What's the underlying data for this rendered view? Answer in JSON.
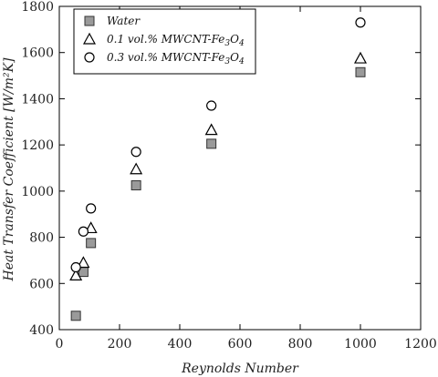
{
  "chart_data": {
    "type": "scatter",
    "xlabel": "Reynolds Number",
    "ylabel": "Heat Transfer Coefficient [W/m²K]",
    "xlim": [
      0,
      1200
    ],
    "ylim": [
      400,
      1800
    ],
    "xticks": [
      0,
      200,
      400,
      600,
      800,
      1000,
      1200
    ],
    "yticks": [
      400,
      600,
      800,
      1000,
      1200,
      1400,
      1600,
      1800
    ],
    "grid": false,
    "legend_position": "top-left",
    "series": [
      {
        "name": "Water",
        "marker": "square",
        "color": "#9a9a9a",
        "x": [
          55,
          80,
          105,
          255,
          505,
          1000
        ],
        "y": [
          460,
          650,
          775,
          1025,
          1205,
          1515
        ]
      },
      {
        "name": "0.1 vol.% MWCNT-Fe3O4",
        "marker": "triangle",
        "color": "#000000",
        "x": [
          55,
          80,
          105,
          255,
          505,
          1000
        ],
        "y": [
          635,
          690,
          840,
          1095,
          1265,
          1575
        ]
      },
      {
        "name": "0.3 vol.% MWCNT-Fe3O4",
        "marker": "circle",
        "color": "#000000",
        "x": [
          55,
          80,
          105,
          255,
          505,
          1000
        ],
        "y": [
          670,
          825,
          925,
          1170,
          1370,
          1730
        ]
      }
    ]
  }
}
